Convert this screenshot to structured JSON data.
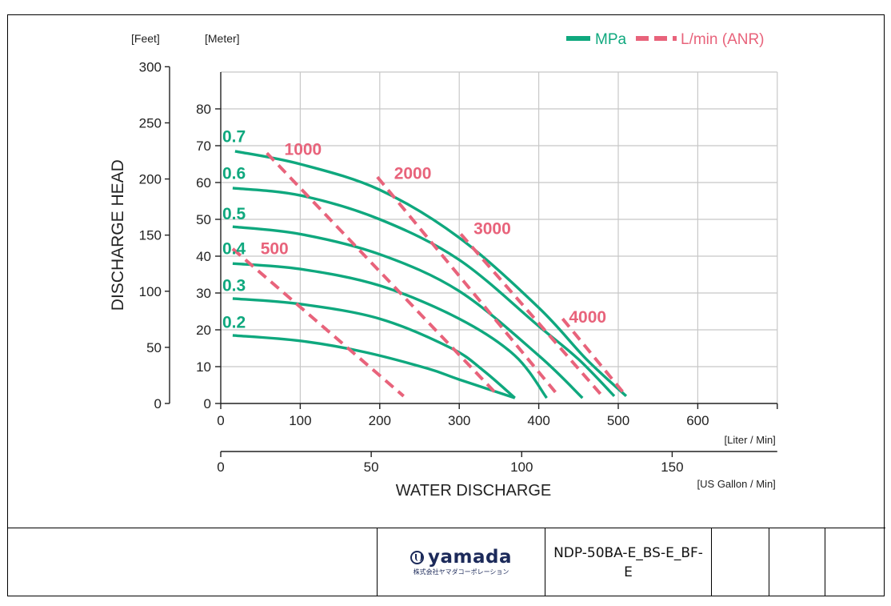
{
  "chart_data": {
    "type": "line",
    "xlabel": "WATER DISCHARGE",
    "ylabel": "DISCHARGE HEAD",
    "x_unit_primary": "[Liter / Min]",
    "x_unit_secondary": "[US Gallon / Min]",
    "y_unit_feet": "[Feet]",
    "y_unit_meter": "[Meter]",
    "xlim": [
      0,
      700
    ],
    "ylim_meter": [
      0,
      90
    ],
    "x_ticks": [
      "0",
      "100",
      "200",
      "300",
      "400",
      "500",
      "600"
    ],
    "x2_ticks": [
      "0",
      "50",
      "100",
      "150"
    ],
    "y_meter_ticks": [
      "0",
      "10",
      "20",
      "30",
      "40",
      "50",
      "60",
      "70",
      "80"
    ],
    "y_feet_ticks": [
      "0",
      "50",
      "100",
      "150",
      "200",
      "250",
      "300"
    ],
    "grid": true,
    "legend": [
      {
        "label": "MPa",
        "style": "solid",
        "color": "#0fa87e"
      },
      {
        "label": "L/min (ANR)",
        "style": "dashed",
        "color": "#e8637b"
      }
    ],
    "legend_position": "top-right",
    "colors": {
      "mpa": "#0fa87e",
      "air": "#e8637b",
      "grid": "#c8c8c8"
    },
    "series": [
      {
        "name": "0.7",
        "style": "solid",
        "x": [
          18,
          100,
          200,
          300,
          400,
          460,
          510
        ],
        "y": [
          68.5,
          65,
          58,
          45,
          26,
          12,
          2
        ]
      },
      {
        "name": "0.6",
        "style": "solid",
        "x": [
          15,
          100,
          200,
          300,
          400,
          450,
          495
        ],
        "y": [
          58.5,
          56.5,
          50,
          39,
          21,
          12,
          2
        ]
      },
      {
        "name": "0.5",
        "style": "solid",
        "x": [
          15,
          100,
          200,
          300,
          400,
          455
        ],
        "y": [
          48,
          46,
          40.5,
          30.5,
          13,
          1.5
        ]
      },
      {
        "name": "0.4",
        "style": "solid",
        "x": [
          15,
          100,
          200,
          300,
          370,
          410
        ],
        "y": [
          38,
          36.5,
          32,
          23,
          13,
          1.5
        ]
      },
      {
        "name": "0.3",
        "style": "solid",
        "x": [
          15,
          100,
          200,
          290,
          330,
          370
        ],
        "y": [
          28.5,
          27,
          23,
          15,
          9,
          1.5
        ]
      },
      {
        "name": "0.2",
        "style": "solid",
        "x": [
          15,
          100,
          180,
          260,
          300,
          370
        ],
        "y": [
          18.5,
          17,
          14,
          9.5,
          6.5,
          1.5
        ]
      },
      {
        "name": "500",
        "style": "dashed",
        "x": [
          15,
          230
        ],
        "y": [
          42,
          2
        ]
      },
      {
        "name": "1000",
        "style": "dashed",
        "x": [
          58,
          345
        ],
        "y": [
          68,
          3
        ]
      },
      {
        "name": "2000",
        "style": "dashed",
        "x": [
          197,
          425
        ],
        "y": [
          61.5,
          2
        ]
      },
      {
        "name": "3000",
        "style": "dashed",
        "x": [
          302,
          480
        ],
        "y": [
          46,
          2
        ]
      },
      {
        "name": "4000",
        "style": "dashed",
        "x": [
          430,
          510
        ],
        "y": [
          23,
          2
        ]
      }
    ],
    "series_labels": [
      {
        "text": "0.7",
        "x": 2,
        "y": 71,
        "color": "mpa"
      },
      {
        "text": "0.6",
        "x": 2,
        "y": 61,
        "color": "mpa"
      },
      {
        "text": "0.5",
        "x": 2,
        "y": 50,
        "color": "mpa"
      },
      {
        "text": "0.4",
        "x": 2,
        "y": 40.5,
        "color": "mpa"
      },
      {
        "text": "0.3",
        "x": 2,
        "y": 30.5,
        "color": "mpa"
      },
      {
        "text": "0.2",
        "x": 2,
        "y": 20.5,
        "color": "mpa"
      },
      {
        "text": "1000",
        "x": 80,
        "y": 67.5,
        "color": "air"
      },
      {
        "text": "2000",
        "x": 218,
        "y": 61,
        "color": "air"
      },
      {
        "text": "500",
        "x": 50,
        "y": 40.5,
        "color": "air"
      },
      {
        "text": "3000",
        "x": 318,
        "y": 46,
        "color": "air"
      },
      {
        "text": "4000",
        "x": 438,
        "y": 22,
        "color": "air"
      }
    ]
  },
  "footer": {
    "logo_word": "yamada",
    "logo_sub": "株式会社ヤマダコーポレーション",
    "doc_code": "NDP-50BA-E_BS-E_BF-E"
  }
}
